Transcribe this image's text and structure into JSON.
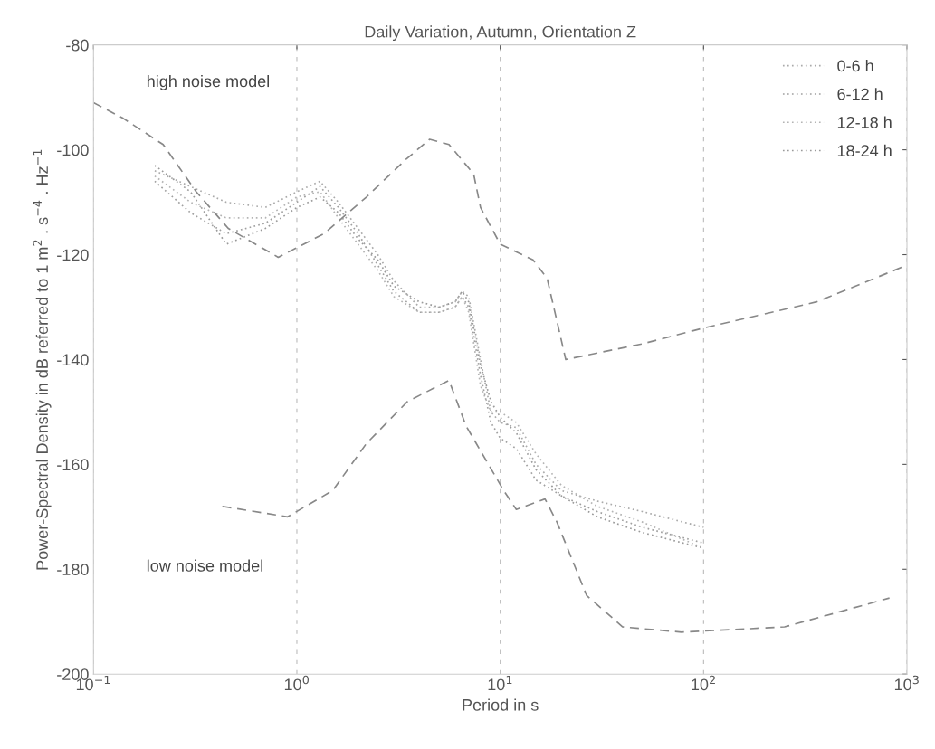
{
  "chart_data": {
    "type": "line",
    "title": "Daily Variation, Autumn, Orientation Z",
    "xlabel": "Period in s",
    "ylabel": "Power-Spectral Density in dB referred to 1 m$^{2}$ . s$^{−4}$ . Hz$^{−1}$",
    "log": "x",
    "xlim": [
      0.1,
      1000
    ],
    "ylim": [
      -200,
      -80
    ],
    "xticks": [
      {
        "value": 0.1,
        "label": "10$^{−1}$"
      },
      {
        "value": 1,
        "label": "10$^{0}$"
      },
      {
        "value": 10,
        "label": "10$^{1}$"
      },
      {
        "value": 100,
        "label": "10$^{2}$"
      },
      {
        "value": 1000,
        "label": "10$^{3}$"
      }
    ],
    "yticks": [
      -200,
      -180,
      -160,
      -140,
      -120,
      -100,
      -80
    ],
    "grid": "x",
    "legend": "top right",
    "marker": "none",
    "series": [
      {
        "name": "0-6 h",
        "color": "#aaaaaa",
        "line_style": "dotted",
        "x": [
          0.2,
          0.3,
          0.45,
          0.7,
          1,
          1.3,
          1.6,
          2,
          2.5,
          3,
          4,
          5,
          6,
          6.5,
          7,
          8,
          9,
          10,
          12,
          15,
          20,
          30,
          50,
          100
        ],
        "values": [
          -104,
          -107,
          -110,
          -111,
          -108,
          -106,
          -110,
          -115,
          -120,
          -125,
          -130,
          -130,
          -129,
          -127,
          -128,
          -140,
          -150,
          -152,
          -153,
          -160,
          -165,
          -167,
          -169,
          -172
        ]
      },
      {
        "name": "6-12 h",
        "color": "#a0a0a0",
        "line_style": "dotted",
        "x": [
          0.2,
          0.3,
          0.45,
          0.7,
          1,
          1.3,
          1.6,
          2,
          2.5,
          3,
          4,
          5,
          6,
          6.5,
          7,
          8,
          9,
          10,
          12,
          15,
          20,
          30,
          50,
          100
        ],
        "values": [
          -106,
          -112,
          -116,
          -114,
          -110,
          -107,
          -111,
          -116,
          -122,
          -127,
          -131,
          -131,
          -130,
          -128,
          -130,
          -143,
          -152,
          -155,
          -157,
          -163,
          -166,
          -169,
          -172,
          -175
        ]
      },
      {
        "name": "12-18 h",
        "color": "#b4b4b4",
        "line_style": "dotted",
        "x": [
          0.2,
          0.3,
          0.45,
          0.7,
          1,
          1.3,
          1.6,
          2,
          2.5,
          3,
          4,
          5,
          6,
          6.5,
          7,
          8,
          9,
          10,
          12,
          15,
          20,
          30,
          50,
          100
        ],
        "values": [
          -105,
          -110,
          -113,
          -113,
          -109,
          -108,
          -113,
          -118,
          -123,
          -128,
          -131,
          -131,
          -130,
          -128,
          -131,
          -145,
          -150,
          -150,
          -152,
          -158,
          -164,
          -168,
          -171,
          -176
        ]
      },
      {
        "name": "18-24 h",
        "color": "#9a9a9a",
        "line_style": "dotted",
        "x": [
          0.2,
          0.3,
          0.45,
          0.7,
          1,
          1.3,
          1.6,
          2,
          2.5,
          3,
          4,
          5,
          6,
          6.5,
          7,
          8,
          9,
          10,
          12,
          15,
          20,
          30,
          50,
          100
        ],
        "values": [
          -103,
          -108,
          -118,
          -115,
          -111,
          -109,
          -112,
          -117,
          -121,
          -126,
          -129,
          -130,
          -129,
          -127,
          -129,
          -141,
          -148,
          -151,
          -154,
          -161,
          -166,
          -170,
          -173,
          -176
        ]
      },
      {
        "color": "#888888",
        "line_style": "dashed",
        "x": [
          0.1,
          0.14,
          0.22,
          0.32,
          0.46,
          0.81,
          1.36,
          2.2,
          3.4,
          4.5,
          5.6,
          7.4,
          8,
          10,
          14.5,
          17,
          21,
          50,
          100,
          360,
          1000
        ],
        "values": [
          -91,
          -94,
          -99,
          -108,
          -115,
          -120.5,
          -116,
          -109,
          -102,
          -98,
          -99,
          -104.6,
          -111,
          -118,
          -121,
          -124.5,
          -140,
          -137,
          -134,
          -129,
          -122
        ]
      },
      {
        "color": "#888888",
        "line_style": "dashed",
        "x": [
          0.43,
          0.9,
          1.5,
          2.2,
          3.5,
          5.6,
          6.8,
          10.4,
          12,
          16.6,
          19,
          26.6,
          40,
          78,
          250,
          820
        ],
        "values": [
          -168,
          -170,
          -165,
          -156,
          -148,
          -144,
          -152.7,
          -165,
          -168.6,
          -166.6,
          -171,
          -185,
          -191,
          -192,
          -191,
          -185.5
        ]
      }
    ],
    "annotations": [
      "high noise model",
      "low noise model"
    ]
  }
}
